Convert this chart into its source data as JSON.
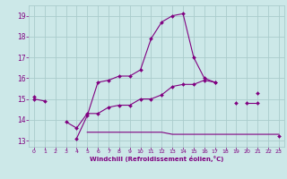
{
  "x": [
    0,
    1,
    2,
    3,
    4,
    5,
    6,
    7,
    8,
    9,
    10,
    11,
    12,
    13,
    14,
    15,
    16,
    17,
    18,
    19,
    20,
    21,
    22,
    23
  ],
  "line1": [
    15.0,
    14.9,
    null,
    13.9,
    13.6,
    14.3,
    14.3,
    14.6,
    14.7,
    14.7,
    15.0,
    15.0,
    15.2,
    15.6,
    15.7,
    15.7,
    15.9,
    15.8,
    null,
    null,
    14.8,
    14.8,
    null,
    null
  ],
  "line2": [
    15.1,
    null,
    null,
    null,
    13.1,
    14.2,
    15.8,
    15.9,
    16.1,
    16.1,
    16.4,
    17.9,
    18.7,
    19.0,
    19.1,
    17.0,
    16.0,
    15.8,
    null,
    14.8,
    null,
    15.3,
    null,
    13.2
  ],
  "line3": [
    null,
    null,
    null,
    null,
    null,
    13.4,
    13.4,
    13.4,
    13.4,
    13.4,
    13.4,
    13.4,
    13.4,
    13.3,
    13.3,
    13.3,
    13.3,
    13.3,
    13.3,
    13.3,
    13.3,
    13.3,
    13.3,
    13.3
  ],
  "line_color": "#800080",
  "bg_color": "#cce8e8",
  "grid_color": "#aacccc",
  "xlabel": "Windchill (Refroidissement éolien,°C)",
  "xlabel_color": "#800080",
  "xlim": [
    -0.5,
    23.5
  ],
  "ylim": [
    12.7,
    19.5
  ],
  "yticks": [
    13,
    14,
    15,
    16,
    17,
    18,
    19
  ],
  "xticks": [
    0,
    1,
    2,
    3,
    4,
    5,
    6,
    7,
    8,
    9,
    10,
    11,
    12,
    13,
    14,
    15,
    16,
    17,
    18,
    19,
    20,
    21,
    22,
    23
  ]
}
